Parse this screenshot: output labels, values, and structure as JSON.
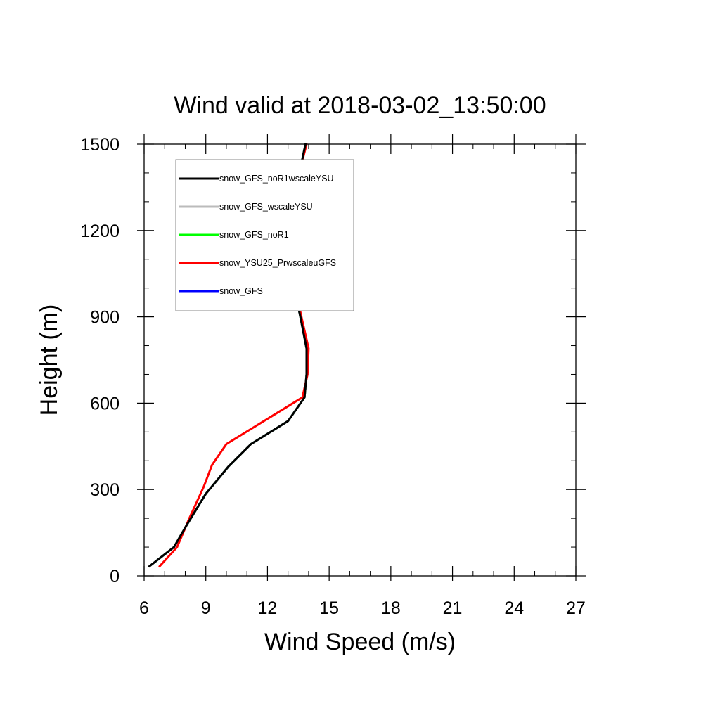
{
  "chart_data": {
    "type": "line",
    "title": "Wind valid at 2018-03-02_13:50:00",
    "xlabel": "Wind Speed (m/s)",
    "ylabel": "Height (m)",
    "xlim": [
      6,
      27
    ],
    "ylim": [
      0,
      1500
    ],
    "x_ticks": [
      6,
      9,
      12,
      15,
      18,
      21,
      24,
      27
    ],
    "y_ticks": [
      0,
      300,
      600,
      900,
      1200,
      1500
    ],
    "grid": false,
    "legend_position": "top-left",
    "series": [
      {
        "name": "snow_GFS",
        "color": "#0000ff",
        "points": [
          [
            6.25,
            33
          ],
          [
            7.45,
            100
          ],
          [
            8.1,
            180
          ],
          [
            9.0,
            285
          ],
          [
            10.1,
            380
          ],
          [
            11.2,
            458
          ],
          [
            13.0,
            538
          ],
          [
            13.8,
            620
          ],
          [
            13.9,
            700
          ],
          [
            13.9,
            790
          ],
          [
            13.6,
            900
          ],
          [
            13.3,
            1000
          ],
          [
            13.05,
            1100
          ],
          [
            13.0,
            1200
          ],
          [
            13.2,
            1300
          ],
          [
            13.55,
            1400
          ],
          [
            13.85,
            1500
          ]
        ]
      },
      {
        "name": "snow_GFS_noR1",
        "color": "#00ff00",
        "points": [
          [
            6.25,
            33
          ],
          [
            7.45,
            100
          ],
          [
            8.1,
            180
          ],
          [
            9.0,
            285
          ],
          [
            10.1,
            380
          ],
          [
            11.2,
            458
          ],
          [
            13.0,
            538
          ],
          [
            13.8,
            620
          ],
          [
            13.9,
            700
          ],
          [
            13.9,
            790
          ],
          [
            13.6,
            900
          ],
          [
            13.3,
            1000
          ],
          [
            13.05,
            1100
          ],
          [
            13.0,
            1200
          ],
          [
            13.2,
            1300
          ],
          [
            13.55,
            1400
          ],
          [
            13.85,
            1500
          ]
        ]
      },
      {
        "name": "snow_GFS_wscaleYSU",
        "color": "#bbbbbb",
        "points": [
          [
            6.25,
            33
          ],
          [
            7.45,
            100
          ],
          [
            8.1,
            180
          ],
          [
            9.0,
            285
          ],
          [
            10.1,
            380
          ],
          [
            11.2,
            458
          ],
          [
            13.0,
            538
          ],
          [
            13.8,
            620
          ],
          [
            13.9,
            700
          ],
          [
            13.9,
            790
          ],
          [
            13.6,
            900
          ],
          [
            13.3,
            1000
          ],
          [
            13.05,
            1100
          ],
          [
            13.0,
            1200
          ],
          [
            13.2,
            1300
          ],
          [
            13.55,
            1400
          ],
          [
            13.85,
            1500
          ]
        ]
      },
      {
        "name": "snow_YSU25_PrwscaleuGFS",
        "color": "#ff0000",
        "points": [
          [
            6.75,
            33
          ],
          [
            7.6,
            100
          ],
          [
            8.2,
            200
          ],
          [
            8.9,
            310
          ],
          [
            9.3,
            385
          ],
          [
            10.0,
            458
          ],
          [
            13.7,
            620
          ],
          [
            13.95,
            700
          ],
          [
            14.0,
            790
          ],
          [
            13.65,
            900
          ],
          [
            13.35,
            1000
          ],
          [
            13.1,
            1100
          ],
          [
            12.95,
            1200
          ],
          [
            13.2,
            1300
          ],
          [
            13.55,
            1400
          ],
          [
            13.9,
            1500
          ]
        ]
      },
      {
        "name": "snow_GFS_noR1wscaleYSU",
        "color": "#000000",
        "points": [
          [
            6.25,
            33
          ],
          [
            7.45,
            100
          ],
          [
            8.1,
            180
          ],
          [
            9.0,
            285
          ],
          [
            10.1,
            380
          ],
          [
            11.2,
            458
          ],
          [
            13.0,
            538
          ],
          [
            13.8,
            620
          ],
          [
            13.9,
            700
          ],
          [
            13.9,
            790
          ],
          [
            13.6,
            900
          ],
          [
            13.3,
            1000
          ],
          [
            13.05,
            1100
          ],
          [
            13.0,
            1200
          ],
          [
            13.2,
            1300
          ],
          [
            13.55,
            1400
          ],
          [
            13.85,
            1500
          ]
        ]
      }
    ],
    "legend_order": [
      "snow_GFS_noR1wscaleYSU",
      "snow_GFS_wscaleYSU",
      "snow_GFS_noR1",
      "snow_YSU25_PrwscaleuGFS",
      "snow_GFS"
    ]
  }
}
